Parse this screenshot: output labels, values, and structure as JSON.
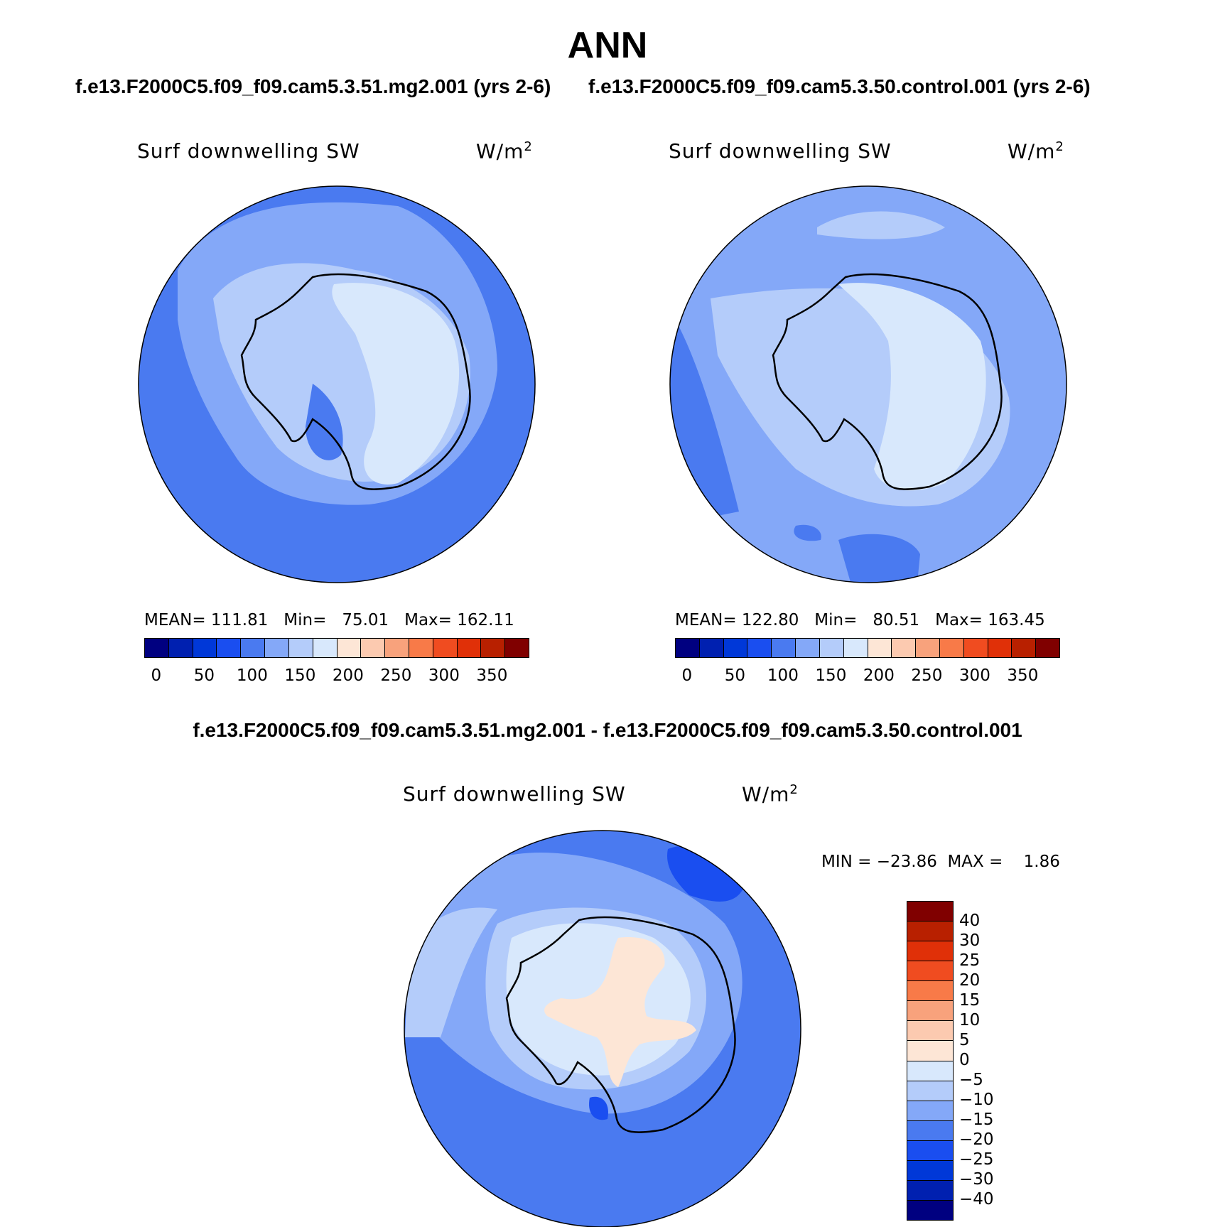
{
  "title": "ANN",
  "case1_title": "f.e13.F2000C5.f09_f09.cam5.3.51.mg2.001 (yrs 2-6)",
  "case2_title": "f.e13.F2000C5.f09_f09.cam5.3.50.control.001 (yrs 2-6)",
  "diff_title": "f.e13.F2000C5.f09_f09.cam5.3.51.mg2.001 - f.e13.F2000C5.f09_f09.cam5.3.50.control.001",
  "panels": {
    "case1": {
      "var_label": "Surf downwelling SW",
      "units_base": "W/m",
      "units_exp": "2",
      "stats": "MEAN= 111.81   Min=   75.01   Max= 162.11"
    },
    "case2": {
      "var_label": "Surf downwelling SW",
      "units_base": "W/m",
      "units_exp": "2",
      "stats": "MEAN= 122.80   Min=   80.51   Max= 163.45"
    },
    "diff": {
      "var_label": "Surf downwelling SW",
      "units_base": "W/m",
      "units_exp": "2",
      "stats": "MIN = −23.86  MAX =    1.86"
    }
  },
  "colorbars": {
    "abs_colors": [
      "#000080",
      "#0020b0",
      "#0038d8",
      "#1a4ef0",
      "#4a7af0",
      "#84a8f8",
      "#b4ccfa",
      "#d8e8fc",
      "#fde6d6",
      "#fccab0",
      "#f8a27c",
      "#f87a48",
      "#f04c20",
      "#e03008",
      "#b82000",
      "#800000"
    ],
    "abs_ticks": [
      "0",
      "50",
      "100",
      "150",
      "200",
      "250",
      "300",
      "350"
    ],
    "diff_colors": [
      "#800000",
      "#b82000",
      "#e03008",
      "#f04c20",
      "#f87a48",
      "#f8a27c",
      "#fccab0",
      "#fde6d6",
      "#d8e8fc",
      "#b4ccfa",
      "#84a8f8",
      "#4a7af0",
      "#1a4ef0",
      "#0038d8",
      "#0020b0",
      "#000080"
    ],
    "diff_ticks": [
      "40",
      "30",
      "25",
      "20",
      "15",
      "10",
      "5",
      "0",
      "−5",
      "−10",
      "−15",
      "−20",
      "−25",
      "−30",
      "−40"
    ]
  },
  "map_colors": {
    "ocean_dark": "#4a7af0",
    "ocean_mid": "#84a8f8",
    "ocean_light": "#b4ccfa",
    "ice": "#d8e8fc",
    "positive": "#fde6d6",
    "deep": "#1a4ef0"
  }
}
